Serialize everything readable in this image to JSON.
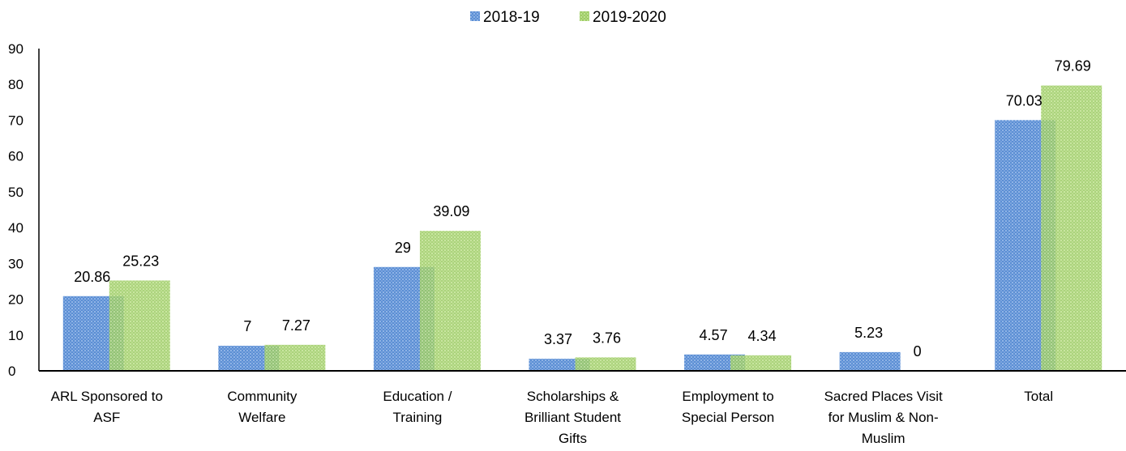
{
  "chart_data": {
    "type": "bar",
    "categories": [
      [
        "ARL Sponsored to",
        "ASF"
      ],
      [
        "Community",
        "Welfare"
      ],
      [
        "Education /",
        "Training"
      ],
      [
        "Scholarships &",
        "Brilliant Student",
        "Gifts"
      ],
      [
        "Employment to",
        "Special Person"
      ],
      [
        "Sacred Places Visit",
        "for Muslim & Non-",
        "Muslim"
      ],
      [
        "Total"
      ]
    ],
    "series": [
      {
        "name": "2018-19",
        "values": [
          20.86,
          7,
          29,
          3.37,
          4.57,
          5.23,
          70.03
        ],
        "labels": [
          "20.86",
          "7",
          "29",
          "3.37",
          "4.57",
          "5.23",
          "70.03"
        ],
        "color": "#5b8fd4"
      },
      {
        "name": "2019-2020",
        "values": [
          25.23,
          7.27,
          39.09,
          3.76,
          4.34,
          0,
          79.69
        ],
        "labels": [
          "25.23",
          "7.27",
          "39.09",
          "3.76",
          "4.34",
          "0",
          "79.69"
        ],
        "color": "#9ccc65"
      }
    ],
    "yticks": [
      "0",
      "10",
      "20",
      "30",
      "40",
      "50",
      "60",
      "70",
      "80",
      "90"
    ],
    "ylim": [
      0,
      90
    ],
    "legend_position": "top-center",
    "grid": false
  }
}
